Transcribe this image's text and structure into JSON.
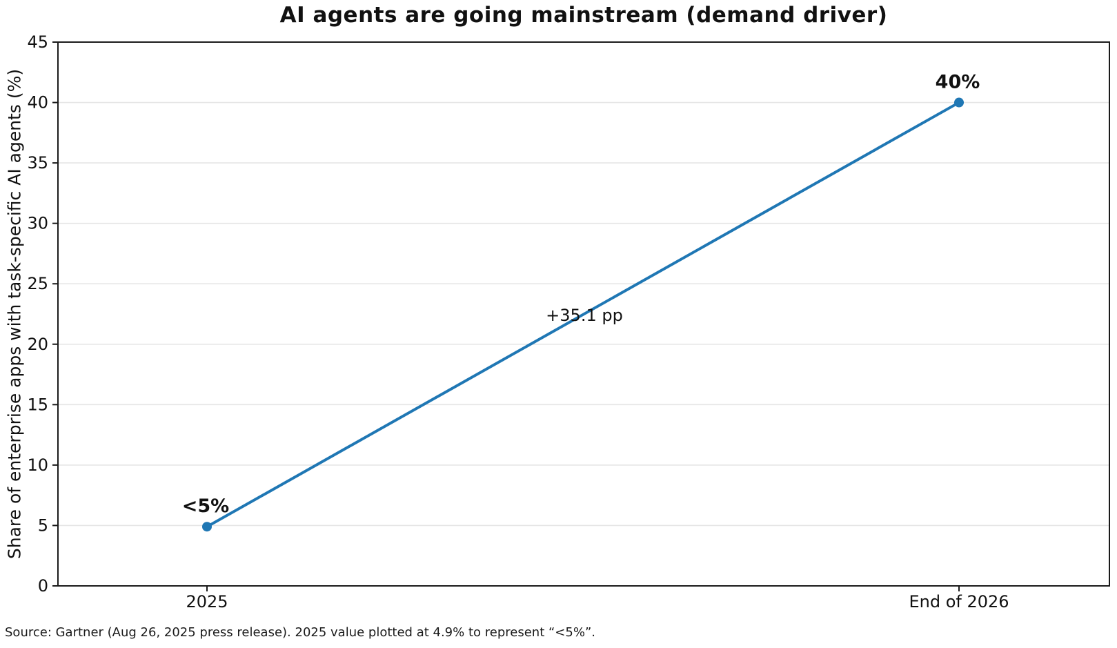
{
  "chart_data": {
    "type": "line",
    "title": "AI agents are going mainstream (demand driver)",
    "xlabel": "",
    "ylabel": "Share of enterprise apps with task-specific AI agents (%)",
    "categories": [
      "2025",
      "End of 2026"
    ],
    "series": [
      {
        "name": "Share of enterprise apps with task-specific AI agents",
        "values": [
          4.9,
          40
        ],
        "point_labels": [
          "<5%",
          "40%"
        ],
        "color": "#1f77b4"
      }
    ],
    "ylim": [
      0,
      45
    ],
    "yticks": [
      0,
      5,
      10,
      15,
      20,
      25,
      30,
      35,
      40,
      45
    ],
    "grid": "horizontal",
    "legend_position": "none",
    "annotations": [
      {
        "text": "+35.1 pp",
        "position": "line-midpoint"
      }
    ],
    "source_note": "Source: Gartner (Aug 26, 2025 press release). 2025 value plotted at 4.9% to represent “<5%”."
  },
  "colors": {
    "line": "#1f77b4",
    "marker": "#1f77b4",
    "grid": "#e6e6e6",
    "axis": "#1a1a1a",
    "text": "#111111",
    "background": "#ffffff"
  }
}
